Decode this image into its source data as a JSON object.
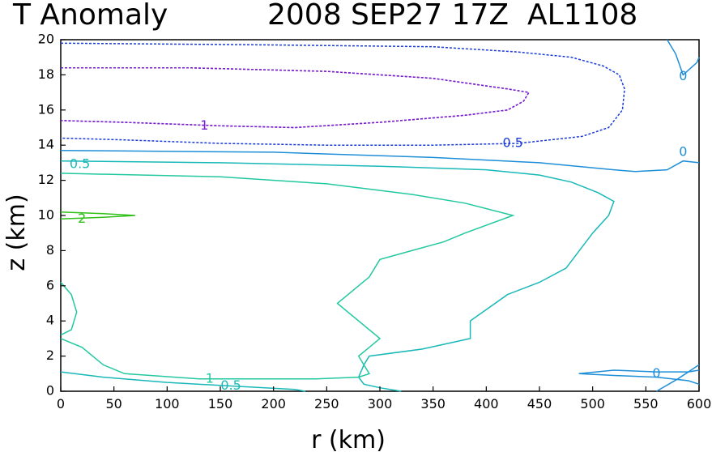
{
  "title": {
    "left": "T Anomaly",
    "right": "2008 SEP27 17Z  AL1108"
  },
  "chart_data": {
    "type": "contour",
    "title": "T Anomaly",
    "subtitle": "2008 SEP27 17Z  AL1108",
    "xlabel": "r (km)",
    "ylabel": "z (km)",
    "xlim": [
      0,
      600
    ],
    "ylim": [
      0,
      20
    ],
    "xticks": [
      0,
      50,
      100,
      150,
      200,
      250,
      300,
      350,
      400,
      450,
      500,
      550,
      600
    ],
    "yticks": [
      0,
      2,
      4,
      6,
      8,
      10,
      12,
      14,
      16,
      18,
      20
    ],
    "grid": false,
    "contours": [
      {
        "level": 1,
        "color": "#7a1fd0",
        "dashed": true,
        "points": [
          [
            0,
            18.4
          ],
          [
            120,
            18.4
          ],
          [
            250,
            18.2
          ],
          [
            350,
            17.8
          ],
          [
            420,
            17.2
          ],
          [
            440,
            17.0
          ],
          [
            435,
            16.5
          ],
          [
            420,
            16.0
          ],
          [
            380,
            15.7
          ],
          [
            300,
            15.3
          ],
          [
            220,
            15.0
          ],
          [
            150,
            15.1
          ],
          [
            60,
            15.3
          ],
          [
            0,
            15.4
          ]
        ]
      },
      {
        "level": 1,
        "color": "#7a1fd0",
        "dashed": true,
        "points": [
          [
            0,
            18.4
          ],
          [
            120,
            18.4
          ],
          [
            250,
            18.2
          ],
          [
            350,
            17.8
          ],
          [
            420,
            17.2
          ],
          [
            440,
            17.0
          ],
          [
            435,
            16.5
          ],
          [
            420,
            16.0
          ],
          [
            380,
            15.7
          ],
          [
            300,
            15.3
          ],
          [
            220,
            15.0
          ],
          [
            150,
            15.1
          ],
          [
            60,
            15.3
          ],
          [
            0,
            15.4
          ]
        ]
      },
      {
        "level": 0.5,
        "color": "#1a3ad8",
        "dashed": true,
        "points": [
          [
            0,
            19.8
          ],
          [
            200,
            19.7
          ],
          [
            350,
            19.6
          ],
          [
            430,
            19.3
          ],
          [
            480,
            19.0
          ],
          [
            510,
            18.5
          ],
          [
            525,
            18.0
          ],
          [
            530,
            17.2
          ],
          [
            528,
            16.0
          ],
          [
            515,
            15.0
          ],
          [
            490,
            14.5
          ],
          [
            430,
            14.1
          ],
          [
            350,
            14.0
          ],
          [
            250,
            14.0
          ],
          [
            150,
            14.1
          ],
          [
            60,
            14.3
          ],
          [
            0,
            14.4
          ]
        ]
      },
      {
        "level": 0,
        "color": "#1e8ed8",
        "dashed": false,
        "points": [
          [
            0,
            13.7
          ],
          [
            200,
            13.6
          ],
          [
            350,
            13.3
          ],
          [
            450,
            13.0
          ],
          [
            520,
            12.6
          ],
          [
            540,
            12.5
          ],
          [
            570,
            12.6
          ],
          [
            585,
            13.1
          ],
          [
            600,
            13.0
          ]
        ]
      },
      {
        "level": 0,
        "color": "#1e8ed8",
        "dashed": false,
        "points": [
          [
            570,
            20.0
          ],
          [
            578,
            19.2
          ],
          [
            585,
            18.0
          ],
          [
            598,
            18.7
          ],
          [
            600,
            19.0
          ]
        ]
      },
      {
        "level": 0,
        "color": "#1e8ed8",
        "dashed": false,
        "points": [
          [
            487,
            1.0
          ],
          [
            520,
            1.2
          ],
          [
            560,
            1.1
          ],
          [
            590,
            1.1
          ],
          [
            600,
            1.2
          ]
        ]
      },
      {
        "level": 0,
        "color": "#1e8ed8",
        "dashed": false,
        "points": [
          [
            487,
            1.0
          ],
          [
            520,
            0.9
          ],
          [
            560,
            0.8
          ],
          [
            590,
            0.6
          ],
          [
            600,
            0.4
          ]
        ]
      },
      {
        "level": 0,
        "color": "#1e8ed8",
        "dashed": false,
        "points": [
          [
            560,
            0.0
          ],
          [
            580,
            0.7
          ],
          [
            600,
            1.5
          ]
        ]
      },
      {
        "level": 0.5,
        "color": "#18b8b8",
        "dashed": false,
        "points": [
          [
            0,
            13.1
          ],
          [
            150,
            13.0
          ],
          [
            300,
            12.8
          ],
          [
            400,
            12.6
          ],
          [
            450,
            12.3
          ],
          [
            480,
            11.9
          ],
          [
            505,
            11.3
          ],
          [
            520,
            10.8
          ],
          [
            515,
            10.0
          ],
          [
            500,
            9.0
          ],
          [
            475,
            7.0
          ],
          [
            450,
            6.2
          ],
          [
            420,
            5.5
          ],
          [
            385,
            4.0
          ],
          [
            385,
            3.0
          ],
          [
            340,
            2.4
          ],
          [
            290,
            2.0
          ],
          [
            285,
            1.5
          ],
          [
            280,
            0.8
          ],
          [
            285,
            0.4
          ],
          [
            300,
            0.2
          ],
          [
            320,
            0.0
          ]
        ]
      },
      {
        "level": 0.5,
        "color": "#18b8b8",
        "dashed": false,
        "points": [
          [
            0,
            1.1
          ],
          [
            40,
            0.8
          ],
          [
            100,
            0.5
          ],
          [
            160,
            0.3
          ],
          [
            220,
            0.1
          ],
          [
            230,
            0.0
          ]
        ]
      },
      {
        "level": 1,
        "color": "#22c8a0",
        "dashed": false,
        "points": [
          [
            0,
            12.4
          ],
          [
            150,
            12.2
          ],
          [
            250,
            11.8
          ],
          [
            330,
            11.2
          ],
          [
            380,
            10.7
          ],
          [
            425,
            10.0
          ],
          [
            380,
            9.0
          ],
          [
            360,
            8.5
          ],
          [
            330,
            8.0
          ],
          [
            300,
            7.5
          ],
          [
            290,
            6.5
          ],
          [
            260,
            5.0
          ],
          [
            300,
            3.0
          ],
          [
            290,
            2.5
          ],
          [
            280,
            2.0
          ],
          [
            290,
            1.0
          ],
          [
            280,
            0.8
          ],
          [
            240,
            0.7
          ],
          [
            130,
            0.7
          ],
          [
            60,
            1.0
          ],
          [
            40,
            1.5
          ],
          [
            20,
            2.5
          ],
          [
            0,
            3.0
          ]
        ]
      },
      {
        "level": 1,
        "color": "#22c8a0",
        "dashed": false,
        "points": [
          [
            0,
            6.2
          ],
          [
            10,
            5.5
          ],
          [
            15,
            4.5
          ],
          [
            10,
            3.5
          ],
          [
            0,
            3.2
          ]
        ]
      },
      {
        "level": 2,
        "color": "#30c018",
        "dashed": false,
        "points": [
          [
            0,
            10.2
          ],
          [
            40,
            10.1
          ],
          [
            70,
            10.0
          ],
          [
            40,
            9.9
          ],
          [
            0,
            9.8
          ]
        ]
      }
    ],
    "contour_labels": [
      {
        "text": "1",
        "x": 135,
        "y": 15.1,
        "color": "#7a1fd0"
      },
      {
        "text": "0.5",
        "x": 425,
        "y": 14.1,
        "color": "#1a3ad8"
      },
      {
        "text": "0",
        "x": 585,
        "y": 17.9,
        "color": "#1e8ed8"
      },
      {
        "text": "0",
        "x": 585,
        "y": 13.6,
        "color": "#1e8ed8"
      },
      {
        "text": "0",
        "x": 560,
        "y": 1.0,
        "color": "#1e8ed8"
      },
      {
        "text": "0.5",
        "x": 18,
        "y": 12.9,
        "color": "#18b8b8"
      },
      {
        "text": "2",
        "x": 20,
        "y": 9.8,
        "color": "#30c018"
      },
      {
        "text": "1",
        "x": 140,
        "y": 0.7,
        "color": "#22c8a0"
      },
      {
        "text": "0.5",
        "x": 160,
        "y": 0.3,
        "color": "#18b8b8"
      }
    ]
  }
}
